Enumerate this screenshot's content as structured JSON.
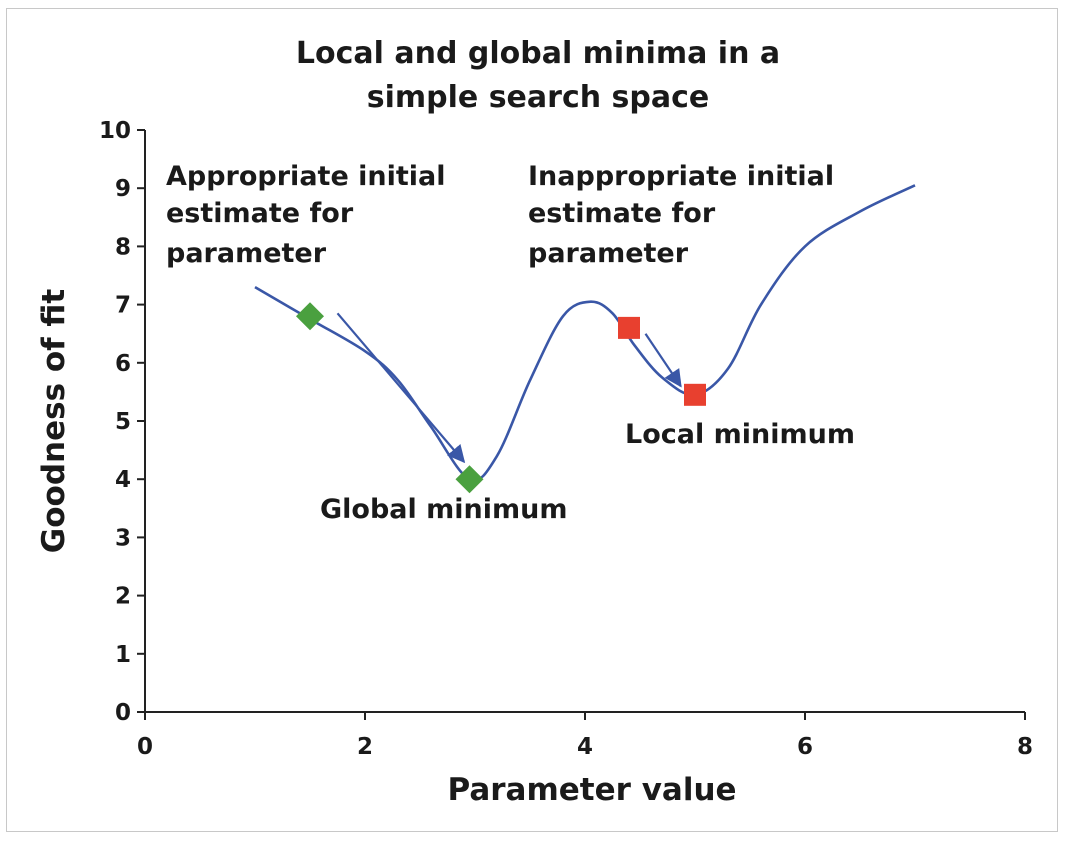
{
  "chart_data": {
    "type": "line",
    "title_lines": [
      "Local and global minima in a",
      "simple search space"
    ],
    "xlabel": "Parameter value",
    "ylabel": "Goodness of fit",
    "xlim": [
      0,
      8
    ],
    "ylim": [
      0,
      10
    ],
    "xticks": [
      0,
      2,
      4,
      6,
      8
    ],
    "yticks": [
      0,
      1,
      2,
      3,
      4,
      5,
      6,
      7,
      8,
      9,
      10
    ],
    "grid": false,
    "legend": "none",
    "curve_color": "#3a57a7",
    "series": [
      {
        "name": "Goodness of fit",
        "x": [
          1.0,
          1.5,
          2.0,
          2.3,
          2.6,
          2.95,
          3.2,
          3.5,
          3.8,
          4.05,
          4.25,
          4.45,
          4.7,
          5.0,
          5.3,
          5.6,
          6.0,
          6.5,
          7.0
        ],
        "y": [
          7.3,
          6.75,
          6.2,
          5.7,
          4.9,
          4.0,
          4.4,
          5.7,
          6.8,
          7.05,
          6.85,
          6.3,
          5.75,
          5.45,
          5.9,
          7.0,
          8.0,
          8.6,
          9.05
        ]
      }
    ],
    "markers": [
      {
        "name": "appropriate-estimate",
        "shape": "diamond",
        "color": "#4aa03f",
        "x": 1.5,
        "y": 6.8
      },
      {
        "name": "global-minimum",
        "shape": "diamond",
        "color": "#4aa03f",
        "x": 2.95,
        "y": 4.0
      },
      {
        "name": "inappropriate-estimate",
        "shape": "square",
        "color": "#e8402f",
        "x": 4.4,
        "y": 6.6
      },
      {
        "name": "local-minimum",
        "shape": "square",
        "color": "#e8402f",
        "x": 5.0,
        "y": 5.45
      }
    ],
    "arrows": [
      {
        "name": "arrow-to-global-minimum",
        "from": [
          1.75,
          6.85
        ],
        "to": [
          2.9,
          4.3
        ]
      },
      {
        "name": "arrow-to-local-minimum",
        "from": [
          4.55,
          6.5
        ],
        "to": [
          4.87,
          5.6
        ]
      }
    ],
    "annotations": [
      {
        "name": "annotation-appropriate",
        "lines": [
          "Appropriate initial",
          "estimate for",
          "parameter"
        ]
      },
      {
        "name": "annotation-inappropriate",
        "lines": [
          "Inappropriate initial",
          "estimate for",
          "parameter"
        ]
      },
      {
        "name": "annotation-global-minimum",
        "lines": [
          "Global minimum"
        ]
      },
      {
        "name": "annotation-local-minimum",
        "lines": [
          "Local minimum"
        ]
      }
    ]
  }
}
